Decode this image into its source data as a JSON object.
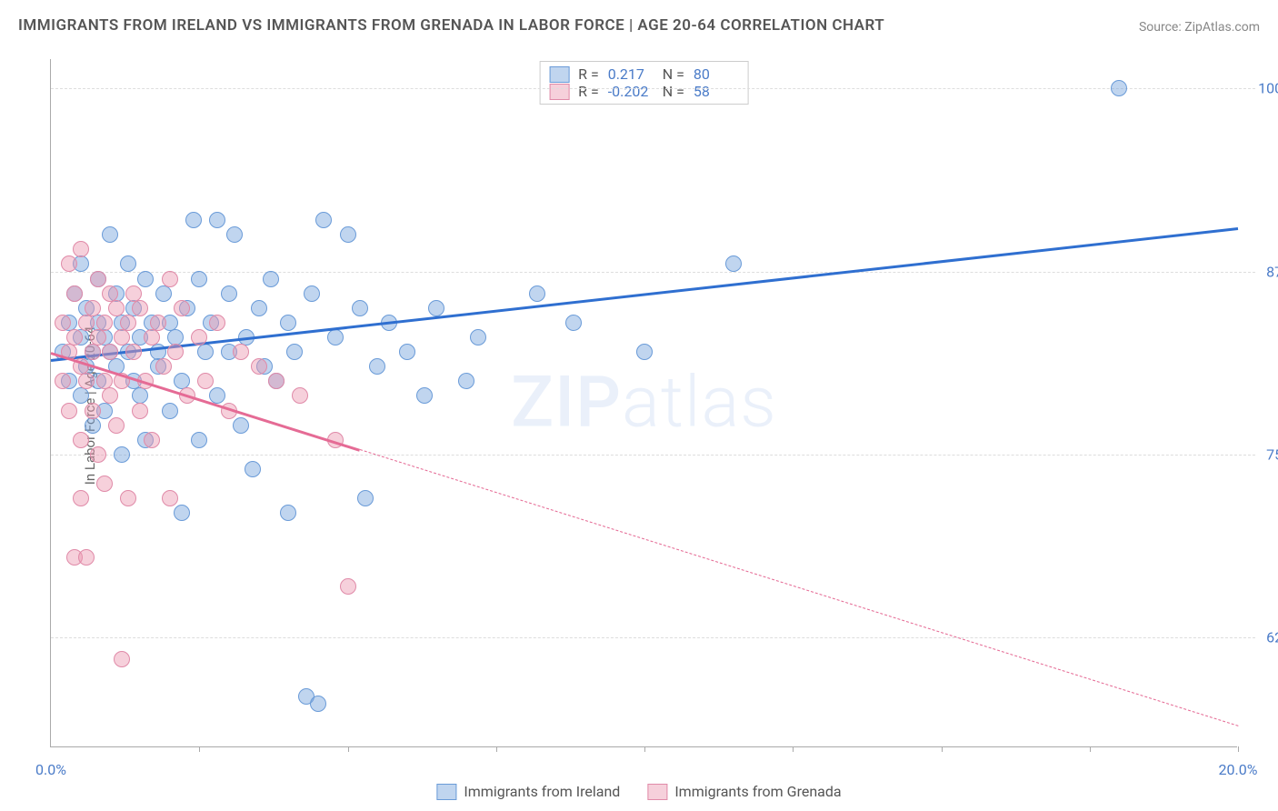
{
  "title": "IMMIGRANTS FROM IRELAND VS IMMIGRANTS FROM GRENADA IN LABOR FORCE | AGE 20-64 CORRELATION CHART",
  "source": "Source: ZipAtlas.com",
  "ylabel": "In Labor Force | Age 20-64",
  "watermark_bold": "ZIP",
  "watermark_light": "atlas",
  "chart": {
    "type": "scatter",
    "xlim": [
      0,
      20
    ],
    "ylim": [
      55,
      102
    ],
    "xticks": [
      {
        "pos": 0,
        "label": "0.0%"
      },
      {
        "pos": 20,
        "label": "20.0%"
      }
    ],
    "xtick_marks": [
      2.5,
      5,
      7.5,
      10,
      12.5,
      15,
      17.5,
      20
    ],
    "yticks": [
      {
        "pos": 62.5,
        "label": "62.5%"
      },
      {
        "pos": 75.0,
        "label": "75.0%"
      },
      {
        "pos": 87.5,
        "label": "87.5%"
      },
      {
        "pos": 100.0,
        "label": "100.0%"
      }
    ],
    "series": [
      {
        "name": "Immigrants from Ireland",
        "color_fill": "rgba(116,162,219,0.45)",
        "color_stroke": "#6a9bd8",
        "trend_color": "#2f6fd0",
        "r": "0.217",
        "n": "80",
        "trend": {
          "x1": 0,
          "y1": 81.5,
          "x2": 20,
          "y2": 90.5,
          "solid_until": 20
        },
        "points": [
          [
            0.2,
            82
          ],
          [
            0.3,
            80
          ],
          [
            0.3,
            84
          ],
          [
            0.4,
            86
          ],
          [
            0.5,
            83
          ],
          [
            0.5,
            79
          ],
          [
            0.5,
            88
          ],
          [
            0.6,
            81
          ],
          [
            0.6,
            85
          ],
          [
            0.7,
            82
          ],
          [
            0.7,
            77
          ],
          [
            0.8,
            87
          ],
          [
            0.8,
            84
          ],
          [
            0.8,
            80
          ],
          [
            0.9,
            83
          ],
          [
            0.9,
            78
          ],
          [
            1.0,
            90
          ],
          [
            1.0,
            82
          ],
          [
            1.1,
            86
          ],
          [
            1.1,
            81
          ],
          [
            1.2,
            84
          ],
          [
            1.2,
            75
          ],
          [
            1.3,
            88
          ],
          [
            1.3,
            82
          ],
          [
            1.4,
            80
          ],
          [
            1.4,
            85
          ],
          [
            1.5,
            83
          ],
          [
            1.5,
            79
          ],
          [
            1.6,
            87
          ],
          [
            1.6,
            76
          ],
          [
            1.7,
            84
          ],
          [
            1.8,
            82
          ],
          [
            1.8,
            81
          ],
          [
            1.9,
            86
          ],
          [
            2.0,
            78
          ],
          [
            2.0,
            84
          ],
          [
            2.1,
            83
          ],
          [
            2.2,
            80
          ],
          [
            2.2,
            71
          ],
          [
            2.3,
            85
          ],
          [
            2.4,
            91
          ],
          [
            2.5,
            87
          ],
          [
            2.5,
            76
          ],
          [
            2.6,
            82
          ],
          [
            2.7,
            84
          ],
          [
            2.8,
            91
          ],
          [
            2.8,
            79
          ],
          [
            3.0,
            86
          ],
          [
            3.0,
            82
          ],
          [
            3.1,
            90
          ],
          [
            3.2,
            77
          ],
          [
            3.3,
            83
          ],
          [
            3.4,
            74
          ],
          [
            3.5,
            85
          ],
          [
            3.6,
            81
          ],
          [
            3.7,
            87
          ],
          [
            3.8,
            80
          ],
          [
            4.0,
            84
          ],
          [
            4.0,
            71
          ],
          [
            4.1,
            82
          ],
          [
            4.3,
            58.5
          ],
          [
            4.4,
            86
          ],
          [
            4.5,
            58
          ],
          [
            4.6,
            91
          ],
          [
            4.8,
            83
          ],
          [
            5.0,
            90
          ],
          [
            5.2,
            85
          ],
          [
            5.3,
            72
          ],
          [
            5.5,
            81
          ],
          [
            5.7,
            84
          ],
          [
            6.0,
            82
          ],
          [
            6.3,
            79
          ],
          [
            6.5,
            85
          ],
          [
            7.0,
            80
          ],
          [
            7.2,
            83
          ],
          [
            8.2,
            86
          ],
          [
            8.8,
            84
          ],
          [
            10.0,
            82
          ],
          [
            11.5,
            88
          ],
          [
            18.0,
            100
          ]
        ]
      },
      {
        "name": "Immigrants from Grenada",
        "color_fill": "rgba(235,150,175,0.45)",
        "color_stroke": "#e08aa8",
        "trend_color": "#e56b95",
        "r": "-0.202",
        "n": "58",
        "trend": {
          "x1": 0,
          "y1": 82,
          "x2": 20,
          "y2": 56.5,
          "solid_until": 5.2
        },
        "points": [
          [
            0.2,
            84
          ],
          [
            0.2,
            80
          ],
          [
            0.3,
            88
          ],
          [
            0.3,
            82
          ],
          [
            0.3,
            78
          ],
          [
            0.4,
            86
          ],
          [
            0.4,
            83
          ],
          [
            0.4,
            68
          ],
          [
            0.5,
            89
          ],
          [
            0.5,
            81
          ],
          [
            0.5,
            76
          ],
          [
            0.5,
            72
          ],
          [
            0.6,
            84
          ],
          [
            0.6,
            80
          ],
          [
            0.6,
            68
          ],
          [
            0.7,
            85
          ],
          [
            0.7,
            82
          ],
          [
            0.7,
            78
          ],
          [
            0.8,
            87
          ],
          [
            0.8,
            83
          ],
          [
            0.8,
            75
          ],
          [
            0.9,
            84
          ],
          [
            0.9,
            80
          ],
          [
            0.9,
            73
          ],
          [
            1.0,
            86
          ],
          [
            1.0,
            82
          ],
          [
            1.0,
            79
          ],
          [
            1.1,
            85
          ],
          [
            1.1,
            77
          ],
          [
            1.2,
            83
          ],
          [
            1.2,
            80
          ],
          [
            1.2,
            61
          ],
          [
            1.3,
            84
          ],
          [
            1.3,
            72
          ],
          [
            1.4,
            86
          ],
          [
            1.4,
            82
          ],
          [
            1.5,
            78
          ],
          [
            1.5,
            85
          ],
          [
            1.6,
            80
          ],
          [
            1.7,
            83
          ],
          [
            1.7,
            76
          ],
          [
            1.8,
            84
          ],
          [
            1.9,
            81
          ],
          [
            2.0,
            87
          ],
          [
            2.0,
            72
          ],
          [
            2.1,
            82
          ],
          [
            2.2,
            85
          ],
          [
            2.3,
            79
          ],
          [
            2.5,
            83
          ],
          [
            2.6,
            80
          ],
          [
            2.8,
            84
          ],
          [
            3.0,
            78
          ],
          [
            3.2,
            82
          ],
          [
            3.5,
            81
          ],
          [
            3.8,
            80
          ],
          [
            4.2,
            79
          ],
          [
            4.8,
            76
          ],
          [
            5.0,
            66
          ]
        ]
      }
    ],
    "marker_radius": 9,
    "marker_stroke_width": 1.5,
    "background_color": "#ffffff",
    "grid_color": "#dddddd",
    "axis_color": "#aaaaaa",
    "tick_label_color": "#4a7bc8",
    "title_color": "#555555",
    "title_fontsize": 17,
    "label_fontsize": 15,
    "tick_fontsize": 16
  },
  "legend_top": [
    {
      "swatch_fill": "rgba(116,162,219,0.45)",
      "swatch_border": "#6a9bd8",
      "r_label": "R =",
      "r_val": "0.217",
      "n_label": "N =",
      "n_val": "80"
    },
    {
      "swatch_fill": "rgba(235,150,175,0.45)",
      "swatch_border": "#e08aa8",
      "r_label": "R =",
      "r_val": "-0.202",
      "n_label": "N =",
      "n_val": "58"
    }
  ],
  "legend_bottom": [
    {
      "swatch_fill": "rgba(116,162,219,0.45)",
      "swatch_border": "#6a9bd8",
      "label": "Immigrants from Ireland"
    },
    {
      "swatch_fill": "rgba(235,150,175,0.45)",
      "swatch_border": "#e08aa8",
      "label": "Immigrants from Grenada"
    }
  ]
}
